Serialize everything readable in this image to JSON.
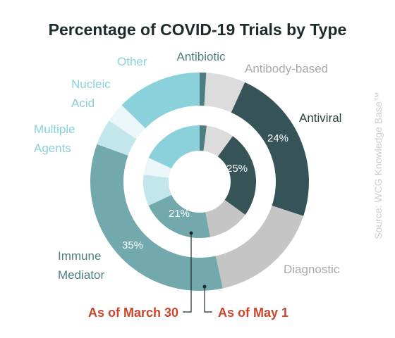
{
  "chart_data": {
    "type": "pie",
    "title": "Percentage of COVID-19 Trials by Type",
    "categories": [
      "Antibiotic",
      "Antibody-based",
      "Antiviral",
      "Diagnostic",
      "Immune Mediator",
      "Multiple Agents",
      "Nucleic Acid",
      "Other"
    ],
    "series": [
      {
        "name": "As of May 1",
        "ring": "outer",
        "values": [
          1,
          6,
          24,
          17,
          35,
          4,
          3,
          13
        ],
        "labels": [
          "",
          "",
          "24%",
          "",
          "35%",
          "",
          "",
          ""
        ]
      },
      {
        "name": "As of March 30",
        "ring": "inner",
        "values": [
          2,
          8,
          25,
          12,
          21,
          9,
          5,
          18
        ],
        "labels": [
          "",
          "",
          "25%",
          "",
          "21%",
          "",
          "",
          ""
        ]
      }
    ],
    "colors": [
      "#4d7f80",
      "#dcdcdc",
      "#365358",
      "#c5c5c5",
      "#72a9ad",
      "#c3e6ec",
      "#ebf6f8",
      "#8ad1db"
    ],
    "label_colors": [
      "#4d7f80",
      "#a9a9a9",
      "#2a3d3f",
      "#a9a9a9",
      "#4d7f80",
      "#8ad1db",
      "#8ad1db",
      "#8ad1db"
    ],
    "legend": "direct labels"
  },
  "labels": {
    "antibiotic": "Antibiotic",
    "antibody_based": "Antibody-based",
    "antiviral": "Antiviral",
    "diagnostic": "Diagnostic",
    "immune_mediator_1": "Immune",
    "immune_mediator_2": "Mediator",
    "multiple_agents_1": "Multiple",
    "multiple_agents_2": "Agents",
    "nucleic_acid_1": "Nucleic",
    "nucleic_acid_2": "Acid",
    "other": "Other"
  },
  "leaders": {
    "march": "As of March 30",
    "may": "As of May 1",
    "color": "#c9462c"
  },
  "source": "Source: WCG Knowledge Base™"
}
